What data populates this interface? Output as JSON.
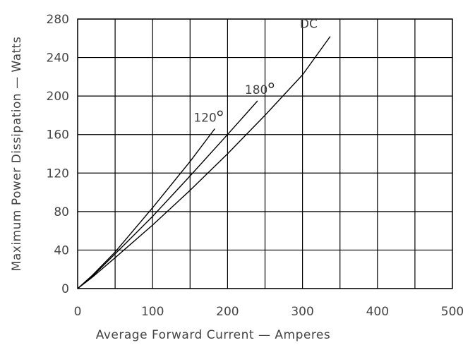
{
  "chart_data": {
    "type": "line",
    "title": "",
    "xlabel": "Average Forward Current — Amperes",
    "ylabel": "Maximum Power Dissipation — Watts",
    "xlim": [
      0,
      500
    ],
    "ylim": [
      0,
      280
    ],
    "x_ticks": [
      0,
      100,
      200,
      300,
      400,
      500
    ],
    "x_tick_labels": [
      "0",
      "100",
      "200",
      "300",
      "400",
      "500"
    ],
    "y_ticks": [
      0,
      40,
      80,
      120,
      160,
      200,
      240,
      280
    ],
    "y_tick_labels": [
      "0",
      "40",
      "80",
      "120",
      "160",
      "200",
      "240",
      "280"
    ],
    "x_grid_step": 50,
    "y_grid_step": 40,
    "grid": true,
    "series": [
      {
        "name": "120°",
        "label": "120",
        "degree": true,
        "points": [
          [
            0,
            0
          ],
          [
            20,
            14
          ],
          [
            50,
            38
          ],
          [
            100,
            84
          ],
          [
            150,
            132
          ],
          [
            183,
            166
          ]
        ]
      },
      {
        "name": "180°",
        "label": "180",
        "degree": true,
        "points": [
          [
            0,
            0
          ],
          [
            20,
            13
          ],
          [
            50,
            36
          ],
          [
            100,
            75
          ],
          [
            150,
            117
          ],
          [
            200,
            160
          ],
          [
            240,
            195
          ]
        ]
      },
      {
        "name": "DC",
        "label": "DC",
        "degree": false,
        "points": [
          [
            0,
            0
          ],
          [
            20,
            12
          ],
          [
            50,
            32
          ],
          [
            100,
            66
          ],
          [
            150,
            102
          ],
          [
            200,
            140
          ],
          [
            250,
            180
          ],
          [
            300,
            222
          ],
          [
            337,
            262
          ]
        ]
      }
    ]
  }
}
